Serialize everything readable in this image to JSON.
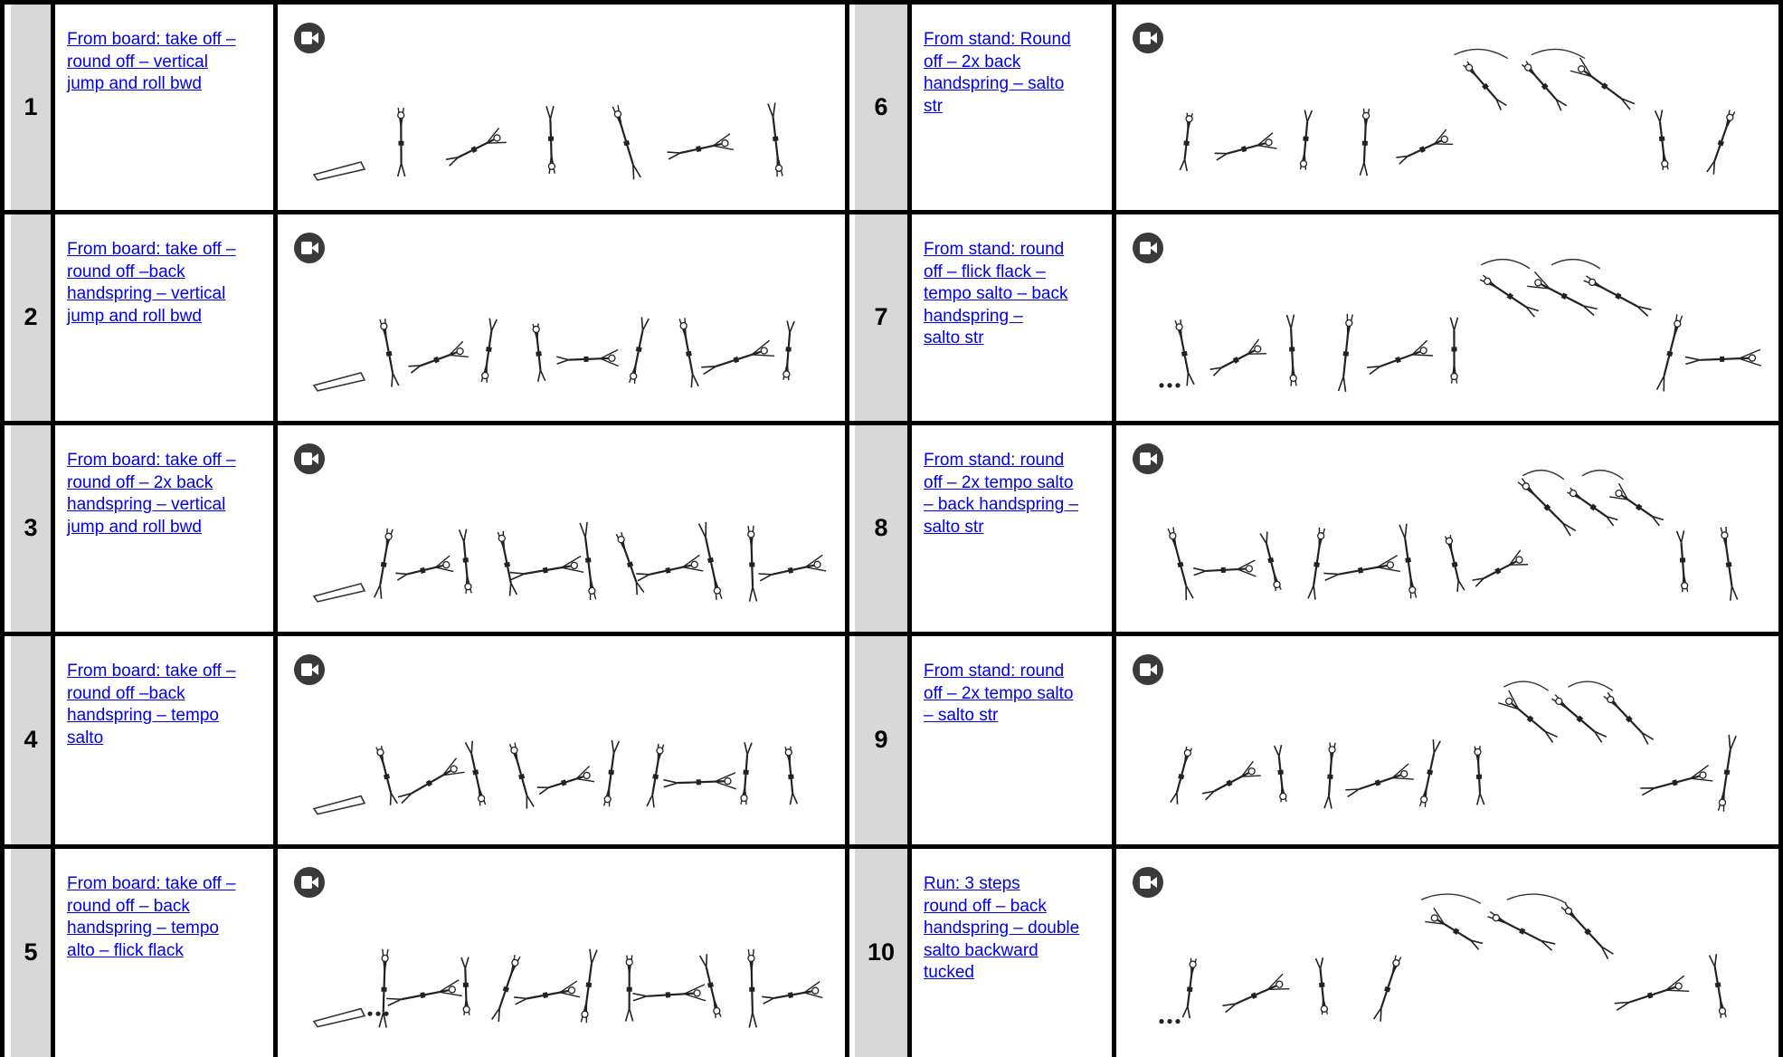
{
  "colors": {
    "link": "#0000ee",
    "number_cell": "#d8d8d8",
    "grid": "#000000",
    "camera_icon": "#3a3a3a"
  },
  "rows": [
    {
      "left": {
        "number": "1",
        "description": "From board: take off –\nround off – vertical\njump and roll bwd",
        "icon": "video-camera-icon"
      },
      "right": {
        "number": "6",
        "description": "From stand: Round\noff – 2x back\nhandspring – salto\nstr",
        "icon": "video-camera-icon"
      }
    },
    {
      "left": {
        "number": "2",
        "description": "From board: take off –\nround off –back\nhandspring – vertical\njump and roll bwd",
        "icon": "video-camera-icon"
      },
      "right": {
        "number": "7",
        "description": "From stand: round\noff – flick flack –\ntempo salto – back\nhandspring –\nsalto str",
        "icon": "video-camera-icon"
      }
    },
    {
      "left": {
        "number": "3",
        "description": "From board: take off –\nround off – 2x back\nhandspring – vertical\njump and roll bwd",
        "icon": "video-camera-icon"
      },
      "right": {
        "number": "8",
        "description": "From stand: round\noff – 2x tempo salto\n– back handspring –\nsalto str",
        "icon": "video-camera-icon"
      }
    },
    {
      "left": {
        "number": "4",
        "description": "From board: take off –\nround off –back\nhandspring  – tempo\nsalto",
        "icon": "video-camera-icon"
      },
      "right": {
        "number": "9",
        "description": "From stand: round\noff – 2x tempo salto\n– salto str",
        "icon": "video-camera-icon"
      }
    },
    {
      "left": {
        "number": "5",
        "description": "From board: take off –\nround off – back\nhandspring – tempo\nalto – flick flack",
        "icon": "video-camera-icon"
      },
      "right": {
        "number": "10",
        "description": "Run: 3 steps\nround off – back\nhandspring – double\nsalto backward\ntucked",
        "icon": "video-camera-icon"
      }
    }
  ]
}
